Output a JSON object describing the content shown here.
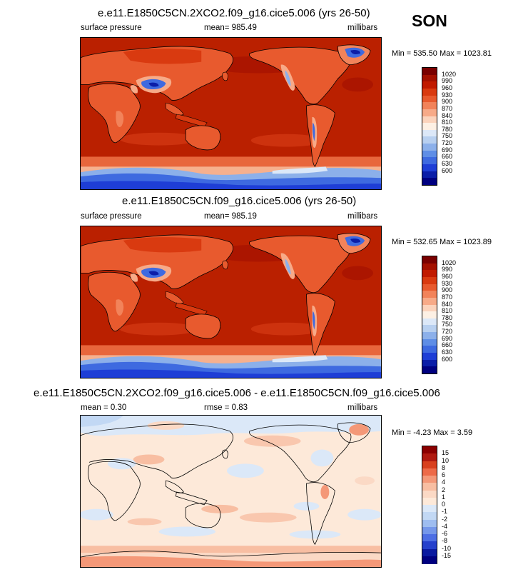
{
  "season": "SON",
  "panels": [
    {
      "title": "e.e11.E1850C5CN.2XCO2.f09_g16.cice5.006 (yrs 26-50)",
      "left_label": "surface pressure",
      "center_label": "mean= 985.49",
      "right_label": "millibars",
      "minmax": "Min = 535.50 Max = 1023.81",
      "colorbar_labels": [
        "1020",
        "990",
        "960",
        "930",
        "900",
        "870",
        "840",
        "810",
        "780",
        "750",
        "720",
        "690",
        "660",
        "630",
        "600"
      ]
    },
    {
      "title": "e.e11.E1850C5CN.f09_g16.cice5.006 (yrs 26-50)",
      "left_label": "surface pressure",
      "center_label": "mean= 985.19",
      "right_label": "millibars",
      "minmax": "Min = 532.65 Max = 1023.89",
      "colorbar_labels": [
        "1020",
        "990",
        "960",
        "930",
        "900",
        "870",
        "840",
        "810",
        "780",
        "750",
        "720",
        "690",
        "660",
        "630",
        "600"
      ]
    },
    {
      "title": "e.e11.E1850C5CN.2XCO2.f09_g16.cice5.006 - e.e11.E1850C5CN.f09_g16.cice5.006",
      "left_label": "mean =  0.30",
      "center_label": "rmse =  0.83",
      "right_label": "millibars",
      "minmax": "Min =  -4.23 Max =   3.59",
      "colorbar_labels": [
        "15",
        "10",
        "8",
        "6",
        "4",
        "2",
        "1",
        "0",
        "-1",
        "-2",
        "-4",
        "-6",
        "-8",
        "-10",
        "-15"
      ]
    }
  ],
  "colors": {
    "abs_scale": [
      "#7a0000",
      "#a41000",
      "#c11a00",
      "#d93a10",
      "#e85a2e",
      "#f2835a",
      "#f7aa88",
      "#fbd3bc",
      "#fdf0e4",
      "#dce8f8",
      "#b8d0f0",
      "#8cb0ea",
      "#5f8ee6",
      "#3e6ae0",
      "#1e3ed6",
      "#0b1ea8",
      "#000080"
    ],
    "diff_scale": [
      "#8b0000",
      "#b01a10",
      "#d8401e",
      "#ed6a48",
      "#f49878",
      "#f8bea2",
      "#fbd9c5",
      "#fde9d9",
      "#dbe8f8",
      "#c2d8f4",
      "#9ebdf0",
      "#7597ea",
      "#4d6ee4",
      "#2540cc",
      "#0a1aa0",
      "#000080"
    ],
    "ocean_abs": "#ba2000",
    "ocean_diff": "#fde9d9"
  }
}
